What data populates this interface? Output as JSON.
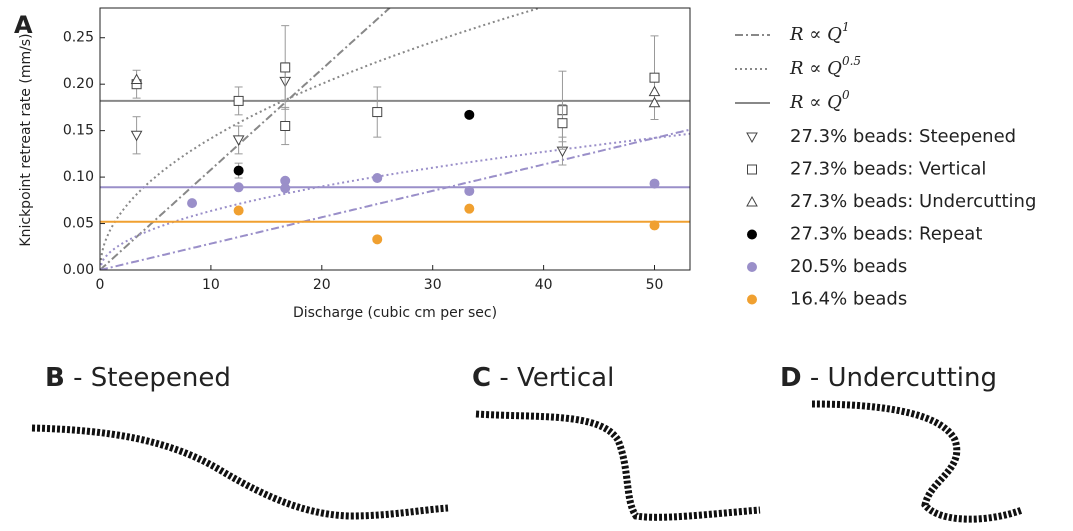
{
  "chart_data": {
    "type": "scatter",
    "panel_label": "A",
    "xlabel": "Discharge (cubic cm per sec)",
    "ylabel": "Knickpoint retreat rate (mm/s)",
    "xlim": [
      0,
      53.2
    ],
    "ylim": [
      0,
      0.282
    ],
    "xticks": [
      0,
      10,
      20,
      30,
      40,
      50
    ],
    "yticks": [
      {
        "value": 0,
        "label": "0.00"
      },
      {
        "value": 0.05,
        "label": "0.05"
      },
      {
        "value": 0.1,
        "label": "0.10"
      },
      {
        "value": 0.15,
        "label": "0.15"
      },
      {
        "value": 0.2,
        "label": "0.20"
      },
      {
        "value": 0.25,
        "label": "0.25"
      }
    ],
    "fit_legend": [
      {
        "name": "R ∝ Q",
        "exponent": 1,
        "dash": "8 3 2 3"
      },
      {
        "name": "R ∝ Q",
        "exponent": 0.5,
        "dash": "2 3"
      },
      {
        "name": "R ∝ Q",
        "exponent": 0,
        "dash": "none"
      }
    ],
    "fits": [
      {
        "color": "#888888",
        "exponent": 1,
        "coefficient": 0.0108,
        "dash": "8 3 2 3"
      },
      {
        "color": "#888888",
        "exponent": 0.5,
        "coefficient": 0.0448,
        "dash": "2 3"
      },
      {
        "color": "#888888",
        "exponent": 0,
        "coefficient": 0.182,
        "dash": "none"
      },
      {
        "color": "#9a8fc9",
        "exponent": 1,
        "coefficient": 0.00284,
        "dash": "8 3 2 3"
      },
      {
        "color": "#9a8fc9",
        "exponent": 0.5,
        "coefficient": 0.0201,
        "dash": "2 3"
      },
      {
        "color": "#9a8fc9",
        "exponent": 0,
        "coefficient": 0.089,
        "dash": "none"
      },
      {
        "color": "#f0a030",
        "exponent": 0,
        "coefficient": 0.052,
        "dash": "none"
      }
    ],
    "series": [
      {
        "name": "27.3% beads: Steepened",
        "marker": "triangle-down",
        "color": "#444444",
        "filled": false,
        "x": [
          3.3,
          12.5,
          16.7,
          41.7
        ],
        "values": [
          0.145,
          0.14,
          0.203,
          0.128
        ],
        "errors": [
          0.02,
          0.015,
          0.02,
          0.015
        ]
      },
      {
        "name": "27.3% beads: Vertical",
        "marker": "square",
        "color": "#444444",
        "filled": false,
        "x": [
          3.3,
          12.5,
          16.7,
          16.7,
          25,
          41.7,
          41.7,
          50
        ],
        "values": [
          0.2,
          0.182,
          0.218,
          0.155,
          0.17,
          0.172,
          0.158,
          0.207
        ],
        "errors": [
          0.015,
          0.015,
          0.045,
          0.02,
          0.027,
          0.042,
          0.02,
          0.045
        ]
      },
      {
        "name": "27.3% beads: Undercutting",
        "marker": "triangle-up",
        "color": "#444444",
        "filled": false,
        "x": [
          3.3,
          50,
          50
        ],
        "values": [
          0.205,
          0.192,
          0.18
        ]
      },
      {
        "name": "27.3% beads: Repeat",
        "marker": "circle",
        "color": "#000000",
        "filled": true,
        "x": [
          12.5,
          33.3
        ],
        "values": [
          0.107,
          0.167
        ],
        "errors": [
          0.008,
          null
        ]
      },
      {
        "name": "20.5% beads",
        "marker": "circle",
        "color": "#9a8fc9",
        "filled": true,
        "x": [
          8.3,
          12.5,
          16.7,
          16.7,
          25,
          33.3,
          50
        ],
        "values": [
          0.072,
          0.089,
          0.096,
          0.088,
          0.099,
          0.085,
          0.093
        ]
      },
      {
        "name": "16.4% beads",
        "marker": "circle",
        "color": "#f0a030",
        "filled": true,
        "x": [
          12.5,
          25,
          33.3,
          50
        ],
        "values": [
          0.064,
          0.033,
          0.066,
          0.048
        ]
      }
    ]
  },
  "panels": [
    {
      "letter": "B",
      "title": "- Steepened"
    },
    {
      "letter": "C",
      "title": "- Vertical"
    },
    {
      "letter": "D",
      "title": "- Undercutting"
    }
  ]
}
